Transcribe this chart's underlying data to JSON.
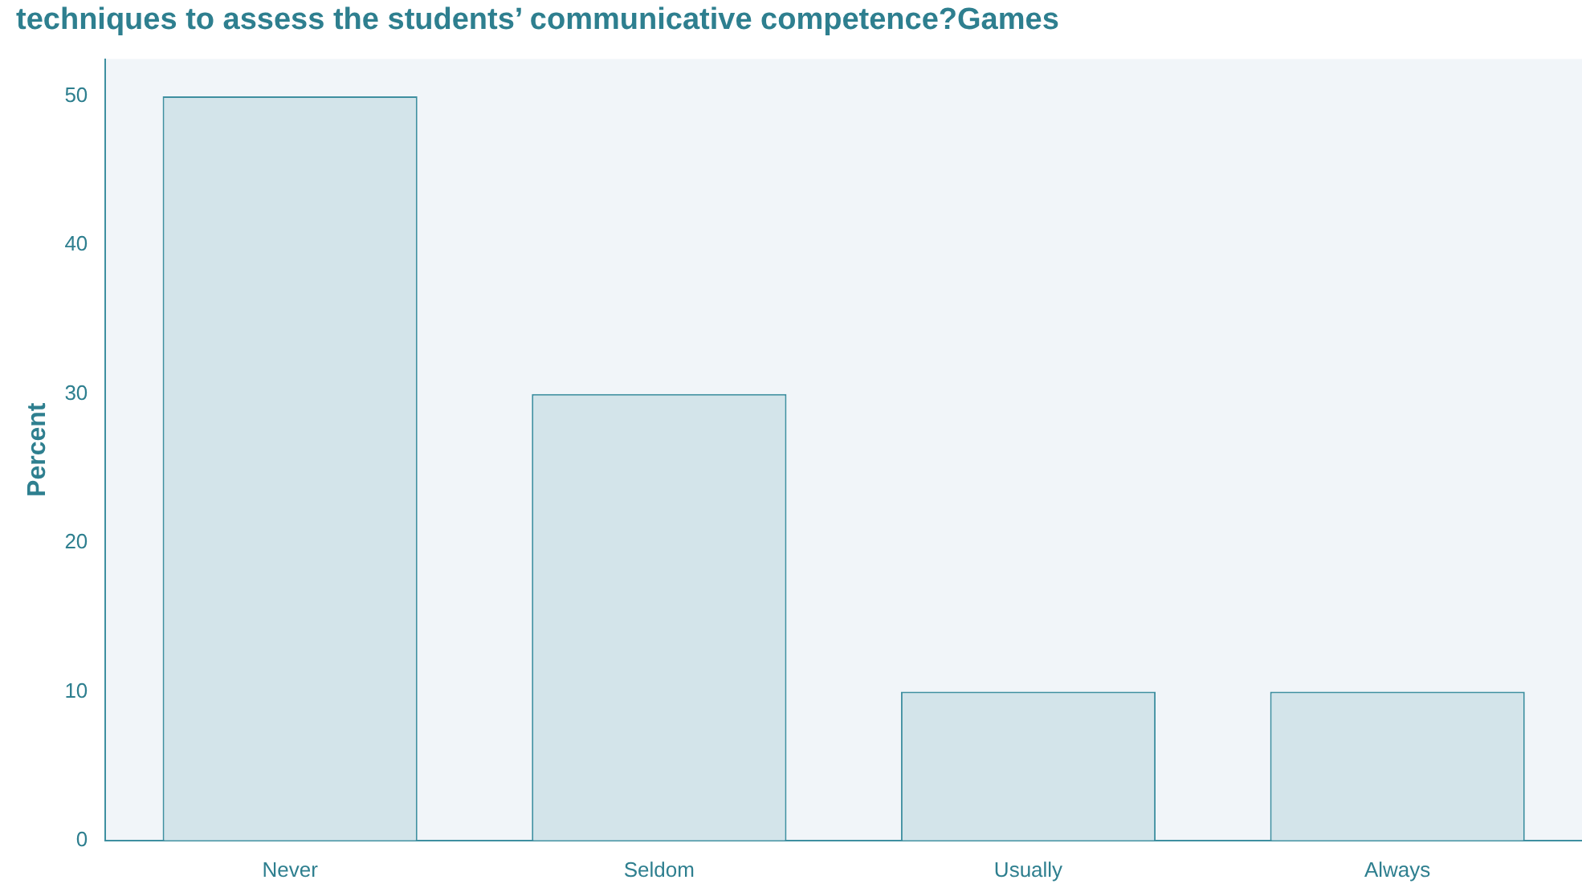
{
  "chart_data": {
    "type": "bar",
    "title": "techniques to assess the students’ communicative competence?Games",
    "ylabel": "Percent",
    "categories": [
      "Never",
      "Seldom",
      "Usually",
      "Always"
    ],
    "values": [
      50,
      30,
      10,
      10
    ],
    "color": "#d3e4ea",
    "ylim": [
      0,
      52.5
    ],
    "yticks": [
      0,
      10,
      20,
      30,
      40,
      50
    ],
    "grid": false,
    "legend": false
  }
}
